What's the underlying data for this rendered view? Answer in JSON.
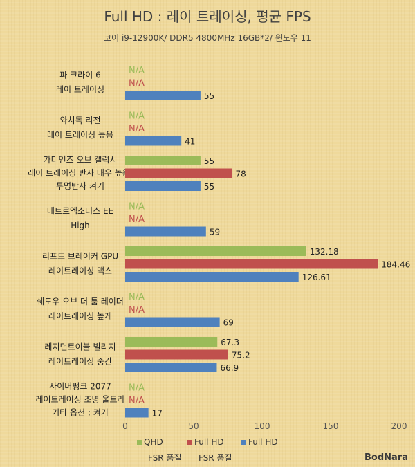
{
  "chart_data": {
    "type": "bar",
    "orientation": "horizontal",
    "title": "Full HD : 레이 트레이싱, 평균 FPS",
    "subtitle": "코어 i9-12900K/ DDR5 4800MHz 16GB*2/ 윈도우 11",
    "categories": [
      [
        "파 크라이 6",
        "레이 트레이싱"
      ],
      [
        "와치독 리전",
        "레이 트레이싱 높음"
      ],
      [
        "가디언즈 오브 갤럭시",
        "레이 트레이싱 반사 매우 높음/",
        "투명반사 켜기"
      ],
      [
        "메트로엑소더스 EE",
        "High"
      ],
      [
        "리프트 브레이커 GPU",
        "레이트레이싱 맥스"
      ],
      [
        "쉐도우 오브 더 툼 레이더",
        "레이트레이싱 높게"
      ],
      [
        "레지던트이블 빌리지",
        "레이트레이싱 중간"
      ],
      [
        "사이버펑크 2077",
        "레이트레이싱 조명 울트라",
        "기타 옵션 : 켜기"
      ]
    ],
    "series": [
      {
        "name": "QHD",
        "name2": "FSR 품질",
        "color": "#9bbb59",
        "values": [
          null,
          null,
          55,
          null,
          132.18,
          null,
          67.3,
          null
        ],
        "labels": [
          "N/A",
          "N/A",
          "55",
          "N/A",
          "132.18",
          "N/A",
          "67.3",
          "N/A"
        ]
      },
      {
        "name": "Full HD",
        "name2": "FSR 품질",
        "color": "#c0504d",
        "values": [
          null,
          null,
          78,
          null,
          184.46,
          null,
          75.2,
          null
        ],
        "labels": [
          "N/A",
          "N/A",
          "78",
          "N/A",
          "184.46",
          "N/A",
          "75.2",
          "N/A"
        ]
      },
      {
        "name": "Full HD",
        "name2": "",
        "color": "#4f81bd",
        "values": [
          55,
          41,
          55,
          59,
          126.61,
          69,
          66.9,
          17
        ],
        "labels": [
          "55",
          "41",
          "55",
          "59",
          "126.61",
          "69",
          "66.9",
          "17"
        ]
      }
    ],
    "xlim": [
      0,
      200
    ],
    "xticks": [
      "0",
      "50",
      "100",
      "150",
      "200"
    ],
    "grid": false,
    "legend": "bottom"
  },
  "watermark": "BodNara"
}
